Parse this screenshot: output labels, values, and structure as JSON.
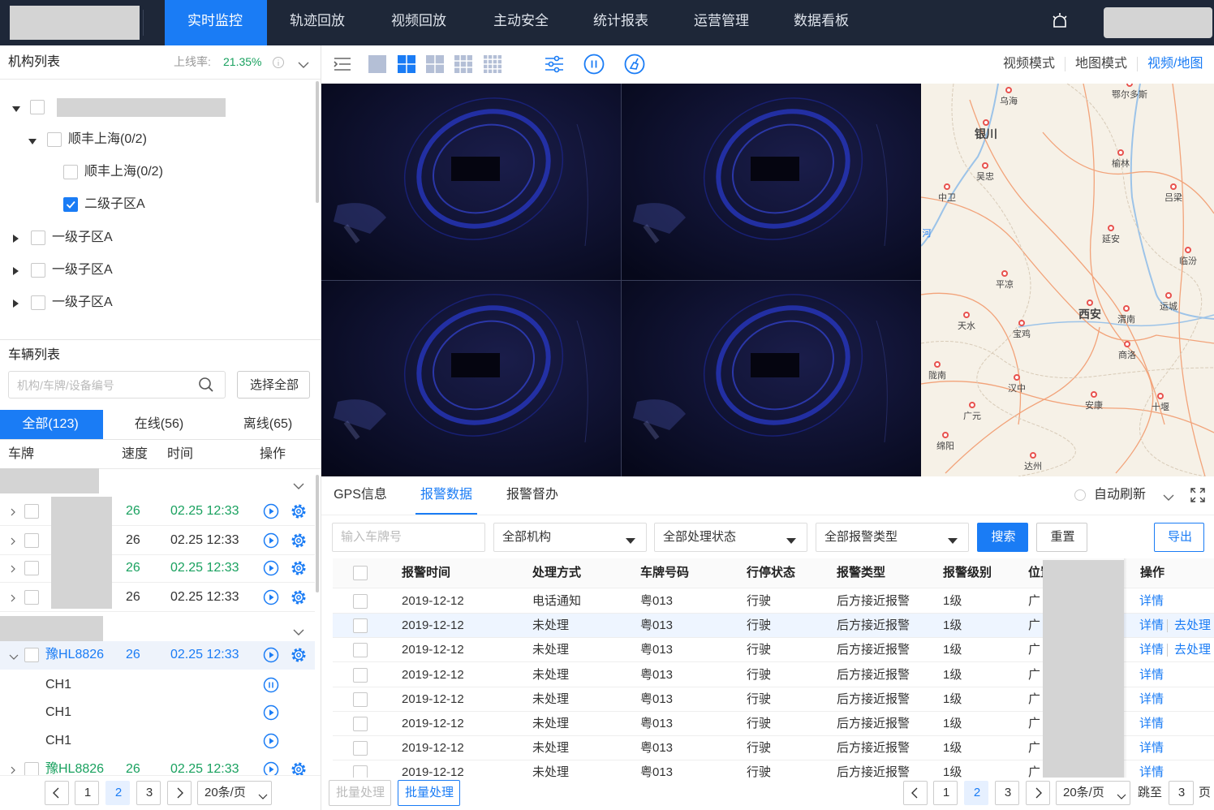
{
  "nav": {
    "items": [
      "实时监控",
      "轨迹回放",
      "视频回放",
      "主动安全",
      "统计报表",
      "运营管理",
      "数据看板"
    ],
    "active": 0
  },
  "org_panel": {
    "title": "机构列表",
    "online_rate_label": "上线率:",
    "online_rate": "21.35%",
    "tree": [
      {
        "label": "顺丰上海(0/2)",
        "checked": false
      },
      {
        "label": "顺丰上海(0/2)",
        "checked": false
      },
      {
        "label": "二级子区A",
        "checked": true
      },
      {
        "label": "一级子区A",
        "checked": false
      },
      {
        "label": "一级子区A",
        "checked": false
      },
      {
        "label": "一级子区A",
        "checked": false
      }
    ]
  },
  "vehicles": {
    "title": "车辆列表",
    "search_placeholder": "机构/车牌/设备编号",
    "select_all": "选择全部",
    "tabs": [
      "全部(123)",
      "在线(56)",
      "离线(65)"
    ],
    "active_tab": 0,
    "columns": [
      "车牌",
      "速度",
      "时间",
      "操作"
    ],
    "rows": [
      {
        "speed": "26",
        "time": "02.25 12:33",
        "color": "#19a15f"
      },
      {
        "speed": "26",
        "time": "02.25 12:33",
        "color": "#333333"
      },
      {
        "speed": "26",
        "time": "02.25 12:33",
        "color": "#19a15f"
      },
      {
        "speed": "26",
        "time": "02.25 12:33",
        "color": "#333333"
      }
    ],
    "expanded": {
      "plate": "豫HL8826",
      "speed": "26",
      "time": "02.25 12:33",
      "color": "#1a7cf5",
      "channels": [
        "CH1",
        "CH1",
        "CH1"
      ]
    },
    "last": {
      "plate": "豫HL8826",
      "speed": "26",
      "time": "02.25 12:33",
      "color": "#19a15f"
    },
    "pagination": {
      "pages": [
        "1",
        "2",
        "3"
      ],
      "current": 1,
      "page_size": "20条/页"
    }
  },
  "view_modes": {
    "items": [
      "视频模式",
      "地图模式",
      "视频/地图"
    ],
    "active": 2
  },
  "map_labels": [
    "乌海",
    "鄂尔多斯",
    "银川",
    "吴忠",
    "榆林",
    "中卫",
    "吕梁",
    "河",
    "延安",
    "临汾",
    "平凉",
    "运城",
    "西安",
    "渭南",
    "天水",
    "宝鸡",
    "商洛",
    "陇南",
    "汉中",
    "安康",
    "十堰",
    "广元",
    "绵阳",
    "达州"
  ],
  "alarm_panel": {
    "tabs": [
      "GPS信息",
      "报警数据",
      "报警督办"
    ],
    "active_tab": 1,
    "auto_refresh": "自动刷新",
    "plate_placeholder": "输入车牌号",
    "selects": [
      "全部机构",
      "全部处理状态",
      "全部报警类型"
    ],
    "search": "搜索",
    "reset": "重置",
    "export": "导出",
    "columns": [
      "报警时间",
      "处理方式",
      "车牌号码",
      "行停状态",
      "报警类型",
      "报警级别",
      "位置",
      "操作"
    ],
    "rows": [
      {
        "cells": [
          "2019-12-12",
          "电话通知",
          "粤013",
          "行驶",
          "后方接近报警",
          "1级",
          "广"
        ],
        "actions": [
          "详情"
        ]
      },
      {
        "cells": [
          "2019-12-12",
          "未处理",
          "粤013",
          "行驶",
          "后方接近报警",
          "1级",
          "广"
        ],
        "actions": [
          "详情",
          "去处理"
        ]
      },
      {
        "cells": [
          "2019-12-12",
          "未处理",
          "粤013",
          "行驶",
          "后方接近报警",
          "1级",
          "广"
        ],
        "actions": [
          "详情",
          "去处理"
        ]
      },
      {
        "cells": [
          "2019-12-12",
          "未处理",
          "粤013",
          "行驶",
          "后方接近报警",
          "1级",
          "广"
        ],
        "actions": [
          "详情"
        ]
      },
      {
        "cells": [
          "2019-12-12",
          "未处理",
          "粤013",
          "行驶",
          "后方接近报警",
          "1级",
          "广"
        ],
        "actions": [
          "详情"
        ]
      },
      {
        "cells": [
          "2019-12-12",
          "未处理",
          "粤013",
          "行驶",
          "后方接近报警",
          "1级",
          "广"
        ],
        "actions": [
          "详情"
        ]
      },
      {
        "cells": [
          "2019-12-12",
          "未处理",
          "粤013",
          "行驶",
          "后方接近报警",
          "1级",
          "广"
        ],
        "actions": [
          "详情"
        ]
      },
      {
        "cells": [
          "2019-12-12",
          "未处理",
          "粤013",
          "行驶",
          "后方接近报警",
          "1级",
          "广"
        ],
        "actions": [
          "详情"
        ]
      }
    ],
    "batch": [
      "批量处理",
      "批量处理"
    ],
    "pagination": {
      "pages": [
        "1",
        "2",
        "3"
      ],
      "current": 1,
      "page_size": "20条/页",
      "jump_label": "跳至",
      "jump_value": "3",
      "page_unit": "页"
    }
  }
}
